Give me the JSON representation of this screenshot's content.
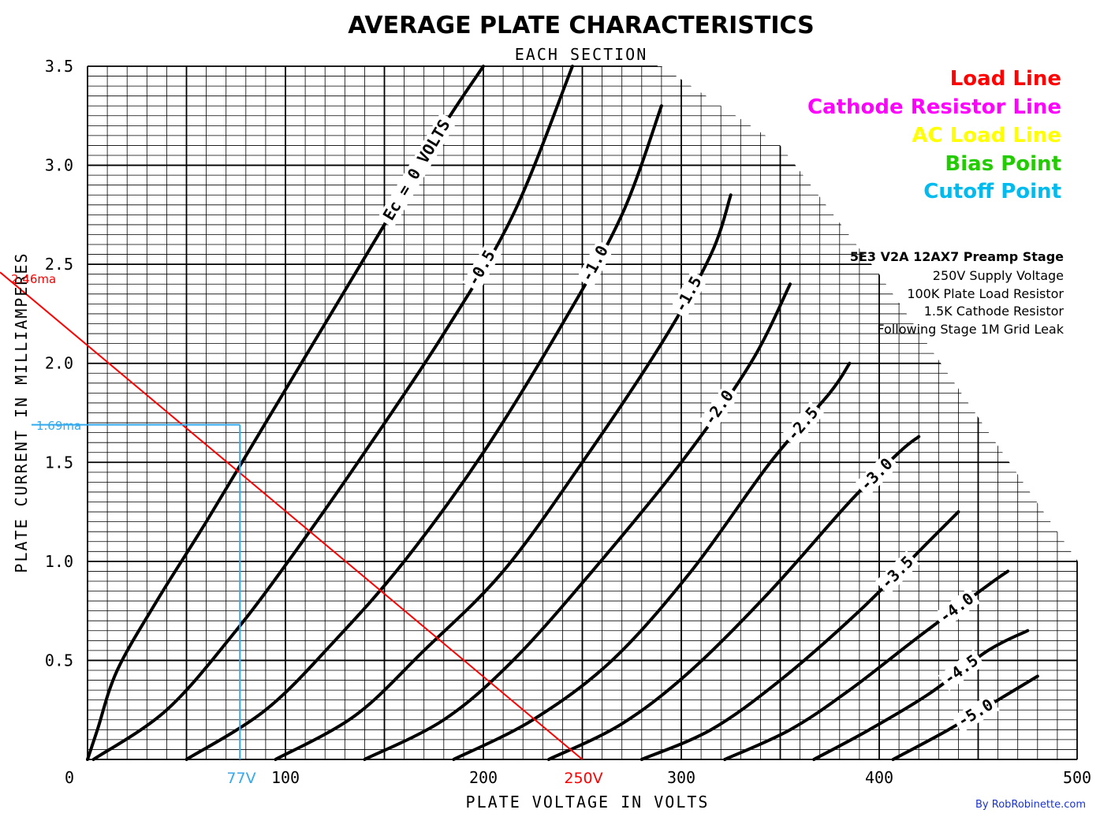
{
  "chart_data": {
    "type": "line",
    "title": "AVERAGE PLATE CHARACTERISTICS",
    "subtitle": "EACH SECTION",
    "xlabel": "PLATE VOLTAGE IN VOLTS",
    "ylabel": "PLATE CURRENT IN MILLIAMPERES",
    "xlim": [
      0,
      500
    ],
    "ylim": [
      0,
      3.5
    ],
    "grid": true,
    "x_ticks": [
      "0",
      "100",
      "200",
      "300",
      "400",
      "500"
    ],
    "y_ticks": [
      "0.5",
      "1.0",
      "1.5",
      "2.0",
      "2.5",
      "3.0",
      "3.5"
    ],
    "curve_label_prefix": "Ec = ",
    "curve_label_unit": "VOLTS",
    "series": [
      {
        "name": "0",
        "label": "0",
        "x": [
          0,
          5,
          15,
          35,
          60,
          90,
          120,
          150,
          180,
          200
        ],
        "y": [
          0,
          0.15,
          0.45,
          0.8,
          1.2,
          1.7,
          2.2,
          2.7,
          3.2,
          3.5
        ]
      },
      {
        "name": "-0.5",
        "label": "-0.5",
        "x": [
          3,
          40,
          75,
          105,
          140,
          180,
          215,
          245
        ],
        "y": [
          0,
          0.25,
          0.65,
          1.05,
          1.55,
          2.15,
          2.75,
          3.5
        ]
      },
      {
        "name": "-1.0",
        "label": "-1.0",
        "x": [
          50,
          90,
          125,
          160,
          200,
          240,
          270,
          290
        ],
        "y": [
          0,
          0.25,
          0.6,
          1.0,
          1.55,
          2.2,
          2.75,
          3.3
        ]
      },
      {
        "name": "-1.5",
        "label": "-1.5",
        "x": [
          95,
          135,
          170,
          210,
          250,
          290,
          315,
          325
        ],
        "y": [
          0,
          0.22,
          0.55,
          0.95,
          1.5,
          2.1,
          2.55,
          2.85
        ]
      },
      {
        "name": "-2.0",
        "label": "-2.0",
        "x": [
          140,
          180,
          215,
          255,
          300,
          335,
          355
        ],
        "y": [
          0,
          0.2,
          0.5,
          0.95,
          1.5,
          2.0,
          2.4
        ]
      },
      {
        "name": "-2.5",
        "label": "-2.5",
        "x": [
          185,
          225,
          265,
          305,
          345,
          375,
          385
        ],
        "y": [
          0,
          0.2,
          0.5,
          0.95,
          1.5,
          1.85,
          2.0
        ]
      },
      {
        "name": "-3.0",
        "label": "-3.0",
        "x": [
          233,
          270,
          305,
          345,
          385,
          410,
          420
        ],
        "y": [
          0,
          0.18,
          0.45,
          0.85,
          1.3,
          1.55,
          1.63
        ]
      },
      {
        "name": "-3.5",
        "label": "-3.5",
        "x": [
          280,
          315,
          350,
          390,
          425,
          440
        ],
        "y": [
          0,
          0.15,
          0.4,
          0.75,
          1.1,
          1.25
        ]
      },
      {
        "name": "-4.0",
        "label": "-4.0",
        "x": [
          322,
          355,
          385,
          420,
          455,
          465
        ],
        "y": [
          0,
          0.15,
          0.35,
          0.62,
          0.88,
          0.95
        ]
      },
      {
        "name": "-4.5",
        "label": "-4.5",
        "x": [
          367,
          395,
          425,
          455,
          475
        ],
        "y": [
          0,
          0.15,
          0.33,
          0.55,
          0.65
        ]
      },
      {
        "name": "-5.0",
        "label": "-5.0",
        "x": [
          407,
          435,
          460,
          480
        ],
        "y": [
          0,
          0.15,
          0.3,
          0.42
        ]
      }
    ],
    "overlays": {
      "load_line": {
        "color": "#ff0000",
        "x": [
          0,
          250
        ],
        "y": [
          2.46,
          0
        ]
      },
      "cutoff_lines": {
        "color": "#33aaee",
        "point": {
          "x": 77,
          "y": 1.69
        }
      }
    },
    "annotations": {
      "y_current": "2.46ma",
      "y_cutoff": "1.69ma",
      "x_cutoff": "77V",
      "x_supply": "250V"
    }
  },
  "legend": {
    "items": [
      {
        "label": "Load Line",
        "color": "#ff0000"
      },
      {
        "label": "Cathode Resistor Line",
        "color": "#ff00ff"
      },
      {
        "label": "AC Load Line",
        "color": "#ffff00"
      },
      {
        "label": "Bias Point",
        "color": "#22cc00"
      },
      {
        "label": "Cutoff Point",
        "color": "#00bbee"
      }
    ]
  },
  "info": {
    "heading": "5E3 V2A 12AX7 Preamp Stage",
    "lines": [
      "250V Supply Voltage",
      "100K Plate Load Resistor",
      "1.5K Cathode Resistor",
      "Following Stage 1M Grid Leak"
    ]
  },
  "credit": "By RobRobinette.com"
}
